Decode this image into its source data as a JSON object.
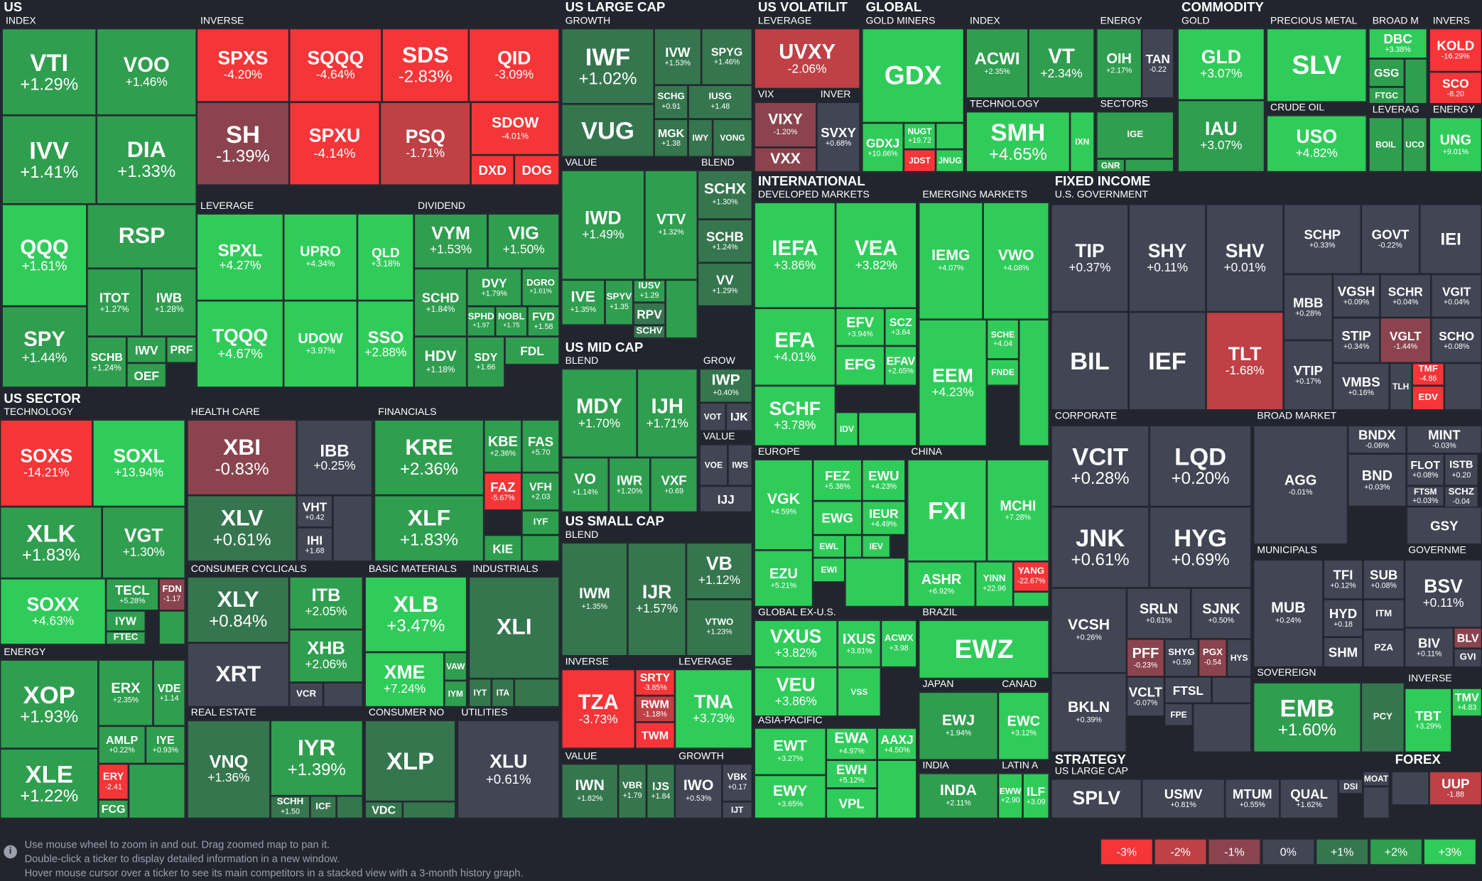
{
  "help": {
    "line1": "Use mouse wheel to zoom in and out. Drag zoomed map to pan it.",
    "line2": "Double-click a ticker to display detailed information in a new window.",
    "line3": "Hover mouse cursor over a ticker to see its main competitors in a stacked view with a 3-month history graph."
  },
  "legend": [
    "-3%",
    "-2%",
    "-1%",
    "0%",
    "+1%",
    "+2%",
    "+3%"
  ],
  "groups": [
    "US",
    "US SECTOR",
    "US LARGE CAP",
    "US MID CAP",
    "US SMALL CAP",
    "US VOLATILIT",
    "GLOBAL",
    "INTERNATIONAL",
    "COMMODITY",
    "FIXED INCOME",
    "STRATEGY",
    "FOREX"
  ],
  "subgroups": [
    "INDEX",
    "INVERSE",
    "LEVERAGE",
    "DIVIDEND",
    "TECHNOLOGY",
    "HEALTH CARE",
    "FINANCIALS",
    "ENERGY",
    "CONSUMER CYCLICALS",
    "BASIC MATERIALS",
    "INDUSTRIALS",
    "REAL ESTATE",
    "CONSUMER NO",
    "UTILITIES",
    "GROWTH",
    "VALUE",
    "BLEND",
    "BLEND",
    "GROW",
    "VALUE",
    "BLEND",
    "INVERSE",
    "LEVERAGE",
    "VALUE",
    "GROWTH",
    "LEVERAGE",
    "VIX",
    "INVER",
    "GOLD MINERS",
    "INDEX",
    "TECHNOLOGY",
    "ENERGY",
    "SECTORS",
    "DEVELOPED MARKETS",
    "EMERGING MARKETS",
    "EUROPE",
    "CHINA",
    "GLOBAL EX-U.S.",
    "BRAZIL",
    "ASIA-PACIFIC",
    "JAPAN",
    "CANAD",
    "INDIA",
    "LATIN A",
    "GOLD",
    "PRECIOUS METAL",
    "BROAD M",
    "INVERS",
    "CRUDE OIL",
    "LEVERAG",
    "ENERGY",
    "U.S. GOVERNMENT",
    "CORPORATE",
    "BROAD MARKET",
    "MUNICIPALS",
    "GOVERNME",
    "SOVEREIGN",
    "INVERSE",
    "US LARGE CAP"
  ],
  "tiles": [
    [
      "VTI",
      "+1.29%"
    ],
    [
      "VOO",
      "+1.46%"
    ],
    [
      "IVV",
      "+1.41%"
    ],
    [
      "DIA",
      "+1.33%"
    ],
    [
      "QQQ",
      "+1.61%"
    ],
    [
      "RSP",
      ""
    ],
    [
      "SPY",
      "+1.44%"
    ],
    [
      "ITOT",
      "+1.27%"
    ],
    [
      "IWB",
      "+1.28%"
    ],
    [
      "SCHB",
      "+1.24%"
    ],
    [
      "IWV",
      ""
    ],
    [
      "PRF",
      ""
    ],
    [
      "OEF",
      ""
    ],
    [
      "SPXS",
      "-4.20%"
    ],
    [
      "SQQQ",
      "-4.64%"
    ],
    [
      "SDS",
      "-2.83%"
    ],
    [
      "QID",
      "-3.09%"
    ],
    [
      "SH",
      "-1.39%"
    ],
    [
      "SPXU",
      "-4.14%"
    ],
    [
      "PSQ",
      "-1.71%"
    ],
    [
      "SDOW",
      "-4.01%"
    ],
    [
      "DXD",
      ""
    ],
    [
      "DOG",
      ""
    ],
    [
      "SPXL",
      "+4.27%"
    ],
    [
      "UPRO",
      "+4.34%"
    ],
    [
      "QLD",
      "+3.18%"
    ],
    [
      "TQQQ",
      "+4.67%"
    ],
    [
      "UDOW",
      "+3.97%"
    ],
    [
      "SSO",
      "+2.88%"
    ],
    [
      "VYM",
      "+1.53%"
    ],
    [
      "VIG",
      "+1.50%"
    ],
    [
      "SCHD",
      "+1.84%"
    ],
    [
      "DVY",
      "+1.79%"
    ],
    [
      "DGRO",
      "+1.61%"
    ],
    [
      "SPHD",
      "+1.97"
    ],
    [
      "NOBL",
      "+1.75"
    ],
    [
      "FVD",
      "+1.58"
    ],
    [
      "HDV",
      "+1.18%"
    ],
    [
      "SDY",
      "+1.66"
    ],
    [
      "FDL",
      ""
    ],
    [
      "SOXS",
      "-14.21%"
    ],
    [
      "SOXL",
      "+13.94%"
    ],
    [
      "XLK",
      "+1.83%"
    ],
    [
      "VGT",
      "+1.30%"
    ],
    [
      "SOXX",
      "+4.63%"
    ],
    [
      "TECL",
      "+5.28%"
    ],
    [
      "FDN",
      "-1.17"
    ],
    [
      "IYW",
      ""
    ],
    [
      "FTEC",
      ""
    ],
    [
      "XBI",
      "-0.83%"
    ],
    [
      "IBB",
      "+0.25%"
    ],
    [
      "XLV",
      "+0.61%"
    ],
    [
      "VHT",
      "+0.42"
    ],
    [
      "IHI",
      "+1.68"
    ],
    [
      "KRE",
      "+2.36%"
    ],
    [
      "KBE",
      "+2.36%"
    ],
    [
      "FAS",
      "+5.70"
    ],
    [
      "XLF",
      "+1.83%"
    ],
    [
      "FAZ",
      "-5.67%"
    ],
    [
      "VFH",
      "+2.03"
    ],
    [
      "IYF",
      ""
    ],
    [
      "KIE",
      ""
    ],
    [
      "XOP",
      "+1.93%"
    ],
    [
      "ERX",
      "+2.35%"
    ],
    [
      "VDE",
      "+1.14"
    ],
    [
      "XLE",
      "+1.22%"
    ],
    [
      "AMLP",
      "+0.22%"
    ],
    [
      "IYE",
      "+0.93%"
    ],
    [
      "ERY",
      "-2.41"
    ],
    [
      "FCG",
      ""
    ],
    [
      "XLY",
      "+0.84%"
    ],
    [
      "ITB",
      "+2.05%"
    ],
    [
      "XHB",
      "+2.06%"
    ],
    [
      "XRT",
      ""
    ],
    [
      "VCR",
      ""
    ],
    [
      "XLB",
      "+3.47%"
    ],
    [
      "XME",
      "+7.24%"
    ],
    [
      "VAW",
      ""
    ],
    [
      "IYM",
      ""
    ],
    [
      "XLI",
      ""
    ],
    [
      "IYT",
      ""
    ],
    [
      "ITA",
      ""
    ],
    [
      "VNQ",
      "+1.36%"
    ],
    [
      "IYR",
      "+1.39%"
    ],
    [
      "SCHH",
      "+1.50"
    ],
    [
      "ICF",
      ""
    ],
    [
      "XLP",
      ""
    ],
    [
      "VDC",
      ""
    ],
    [
      "XLU",
      "+0.61%"
    ],
    [
      "IWF",
      "+1.02%"
    ],
    [
      "IVW",
      "+1.53%"
    ],
    [
      "SPYG",
      "+1.46%"
    ],
    [
      "VUG",
      ""
    ],
    [
      "SCHG",
      "+0.91"
    ],
    [
      "IUSG",
      "+1.48"
    ],
    [
      "MGK",
      "+1.38"
    ],
    [
      "IWY",
      ""
    ],
    [
      "VONG",
      ""
    ],
    [
      "IWD",
      "+1.49%"
    ],
    [
      "VTV",
      "+1.32%"
    ],
    [
      "IVE",
      "+1.35%"
    ],
    [
      "SPYV",
      "+1.35"
    ],
    [
      "IUSV",
      "+1.29"
    ],
    [
      "RPV",
      ""
    ],
    [
      "SCHV",
      ""
    ],
    [
      "SCHX",
      "+1.30%"
    ],
    [
      "SCHB",
      "+1.24%"
    ],
    [
      "VV",
      "+1.29%"
    ],
    [
      "MDY",
      "+1.70%"
    ],
    [
      "IJH",
      "+1.71%"
    ],
    [
      "VO",
      "+1.14%"
    ],
    [
      "IWR",
      "+1.20%"
    ],
    [
      "VXF",
      "+0.69"
    ],
    [
      "IWP",
      "+0.40%"
    ],
    [
      "VOT",
      ""
    ],
    [
      "IJK",
      ""
    ],
    [
      "VOE",
      ""
    ],
    [
      "IWS",
      ""
    ],
    [
      "IJJ",
      ""
    ],
    [
      "IWM",
      "+1.35%"
    ],
    [
      "IJR",
      "+1.57%"
    ],
    [
      "VB",
      "+1.12%"
    ],
    [
      "VTWO",
      "+1.23%"
    ],
    [
      "TZA",
      "-3.73%"
    ],
    [
      "SRTY",
      "-3.85%"
    ],
    [
      "RWM",
      "-1.18%"
    ],
    [
      "TWM",
      ""
    ],
    [
      "TNA",
      "+3.73%"
    ],
    [
      "IWN",
      "+1.82%"
    ],
    [
      "VBR",
      "+1.79"
    ],
    [
      "IJS",
      "+1.84"
    ],
    [
      "IWO",
      "+0.53%"
    ],
    [
      "VBK",
      "+0.17"
    ],
    [
      "IJT",
      ""
    ],
    [
      "UVXY",
      "-2.06%"
    ],
    [
      "VIXY",
      "-1.20%"
    ],
    [
      "VXX",
      ""
    ],
    [
      "SVXY",
      "+0.68%"
    ],
    [
      "GDX",
      ""
    ],
    [
      "GDXJ",
      "+10.66%"
    ],
    [
      "NUGT",
      "+19.72"
    ],
    [
      "JDST",
      ""
    ],
    [
      "JNUG",
      ""
    ],
    [
      "ACWI",
      "+2.35%"
    ],
    [
      "VT",
      "+2.34%"
    ],
    [
      "SMH",
      "+4.65%"
    ],
    [
      "IXN",
      ""
    ],
    [
      "OIH",
      "+2.17%"
    ],
    [
      "TAN",
      "-0.22"
    ],
    [
      "IGE",
      ""
    ],
    [
      "GNR",
      ""
    ],
    [
      "IEFA",
      "+3.86%"
    ],
    [
      "VEA",
      "+3.82%"
    ],
    [
      "EFA",
      "+4.01%"
    ],
    [
      "EFV",
      "+3.94%"
    ],
    [
      "SCZ",
      "+3.64"
    ],
    [
      "EFG",
      ""
    ],
    [
      "EFAV",
      "+2.65%"
    ],
    [
      "SCHF",
      "+3.78%"
    ],
    [
      "IDV",
      ""
    ],
    [
      "IEMG",
      "+4.07%"
    ],
    [
      "VWO",
      "+4.08%"
    ],
    [
      "EEM",
      "+4.23%"
    ],
    [
      "SCHE",
      "+4.04"
    ],
    [
      "FNDE",
      ""
    ],
    [
      "VGK",
      "+4.59%"
    ],
    [
      "FEZ",
      "+5.38%"
    ],
    [
      "EWU",
      "+4.23%"
    ],
    [
      "EWG",
      ""
    ],
    [
      "IEUR",
      "+4.49%"
    ],
    [
      "EWL",
      ""
    ],
    [
      "IEV",
      ""
    ],
    [
      "EZU",
      "+5.21%"
    ],
    [
      "EWI",
      ""
    ],
    [
      "FXI",
      ""
    ],
    [
      "MCHI",
      "+7.28%"
    ],
    [
      "ASHR",
      "+6.92%"
    ],
    [
      "YINN",
      "+22.96"
    ],
    [
      "YANG",
      "-22.67%"
    ],
    [
      "VXUS",
      "+3.82%"
    ],
    [
      "IXUS",
      "+3.81%"
    ],
    [
      "ACWX",
      "+3.98"
    ],
    [
      "VEU",
      "+3.86%"
    ],
    [
      "VSS",
      ""
    ],
    [
      "EWZ",
      ""
    ],
    [
      "EWT",
      "+3.27%"
    ],
    [
      "EWA",
      "+4.97%"
    ],
    [
      "AAXJ",
      "+4.50%"
    ],
    [
      "EWH",
      "+5.12%"
    ],
    [
      "EWY",
      "+3.65%"
    ],
    [
      "VPL",
      ""
    ],
    [
      "EWJ",
      "+1.94%"
    ],
    [
      "EWC",
      "+3.12%"
    ],
    [
      "INDA",
      "+2.11%"
    ],
    [
      "EWW",
      "+2.90"
    ],
    [
      "ILF",
      "+3.09"
    ],
    [
      "GLD",
      "+3.07%"
    ],
    [
      "IAU",
      "+3.07%"
    ],
    [
      "SLV",
      ""
    ],
    [
      "USO",
      "+4.82%"
    ],
    [
      "DBC",
      "+3.38%"
    ],
    [
      "GSG",
      ""
    ],
    [
      "FTGC",
      ""
    ],
    [
      "KOLD",
      "-16.29%"
    ],
    [
      "SCO",
      "-8.20"
    ],
    [
      "BOIL",
      ""
    ],
    [
      "UCO",
      ""
    ],
    [
      "UNG",
      "+9.01%"
    ],
    [
      "TIP",
      "+0.37%"
    ],
    [
      "SHY",
      "+0.11%"
    ],
    [
      "SHV",
      "+0.01%"
    ],
    [
      "SCHP",
      "+0.33%"
    ],
    [
      "GOVT",
      "-0.22%"
    ],
    [
      "IEI",
      ""
    ],
    [
      "BIL",
      ""
    ],
    [
      "IEF",
      ""
    ],
    [
      "TLT",
      "-1.68%"
    ],
    [
      "MBB",
      "+0.28%"
    ],
    [
      "VGSH",
      "+0.09%"
    ],
    [
      "SCHR",
      "+0.04%"
    ],
    [
      "VGIT",
      "+0.04%"
    ],
    [
      "STIP",
      "+0.34%"
    ],
    [
      "VGLT",
      "-1.44%"
    ],
    [
      "SCHO",
      "+0.08%"
    ],
    [
      "VTIP",
      "+0.17%"
    ],
    [
      "VMBS",
      "+0.16%"
    ],
    [
      "TLH",
      ""
    ],
    [
      "TMF",
      "-4.86"
    ],
    [
      "EDV",
      ""
    ],
    [
      "VCIT",
      "+0.28%"
    ],
    [
      "LQD",
      "+0.20%"
    ],
    [
      "JNK",
      "+0.61%"
    ],
    [
      "HYG",
      "+0.69%"
    ],
    [
      "VCSH",
      "+0.26%"
    ],
    [
      "BKLN",
      "+0.39%"
    ],
    [
      "SRLN",
      "+0.61%"
    ],
    [
      "SJNK",
      "+0.50%"
    ],
    [
      "PFF",
      "-0.23%"
    ],
    [
      "SHYG",
      "+0.59"
    ],
    [
      "PGX",
      "-0.54"
    ],
    [
      "HYS",
      ""
    ],
    [
      "VCLT",
      "-0.07%"
    ],
    [
      "FTSL",
      ""
    ],
    [
      "FPE",
      ""
    ],
    [
      "BNDX",
      "-0.06%"
    ],
    [
      "MINT",
      "-0.03%"
    ],
    [
      "AGG",
      "-0.01%"
    ],
    [
      "BND",
      "+0.03%"
    ],
    [
      "FLOT",
      "+0.08%"
    ],
    [
      "ISTB",
      "+0.20"
    ],
    [
      "SCHZ",
      "-0.04"
    ],
    [
      "GSY",
      ""
    ],
    [
      "FTSM",
      "+0.03%"
    ],
    [
      "MUB",
      "+0.24%"
    ],
    [
      "TFI",
      "+0.12%"
    ],
    [
      "SUB",
      "+0.08%"
    ],
    [
      "HYD",
      "+0.18"
    ],
    [
      "SHM",
      ""
    ],
    [
      "ITM",
      ""
    ],
    [
      "PZA",
      ""
    ],
    [
      "BSV",
      "+0.11%"
    ],
    [
      "BIV",
      "+0.11%"
    ],
    [
      "BLV",
      ""
    ],
    [
      "GVI",
      ""
    ],
    [
      "EMB",
      "+1.60%"
    ],
    [
      "PCY",
      ""
    ],
    [
      "TBT",
      "+3.29%"
    ],
    [
      "TMV",
      "+4.83"
    ],
    [
      "SPLV",
      ""
    ],
    [
      "USMV",
      "+0.81%"
    ],
    [
      "MTUM",
      "+0.55%"
    ],
    [
      "QUAL",
      "+1.62%"
    ],
    [
      "DSI",
      ""
    ],
    [
      "MOAT",
      ""
    ],
    [
      "UUP",
      "-1.88"
    ]
  ]
}
